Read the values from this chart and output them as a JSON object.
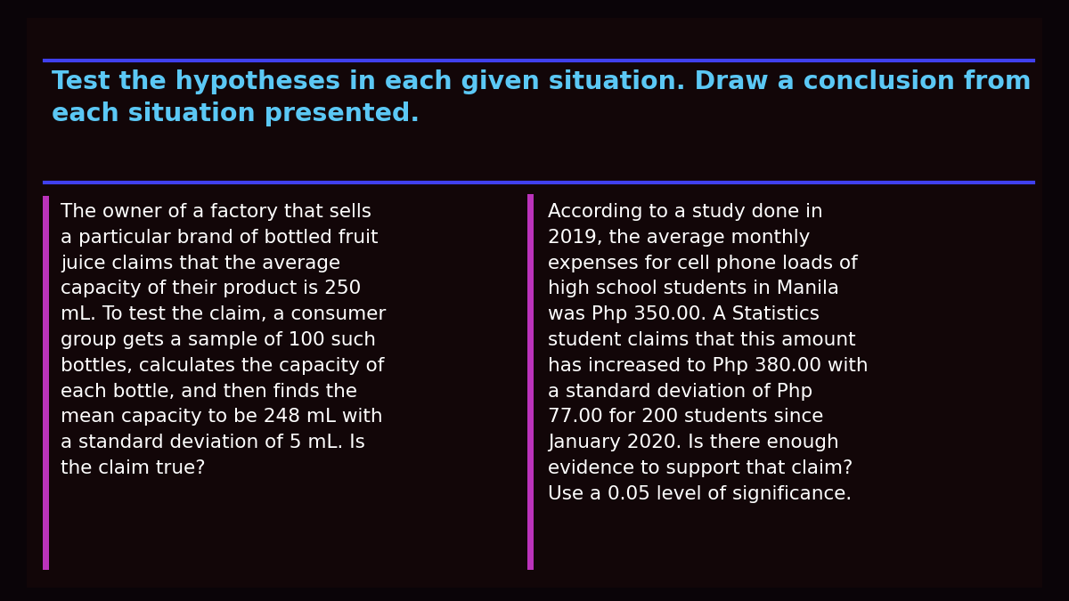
{
  "bg_color": "#0a0408",
  "panel_color": "#120608",
  "title_text": "Test the hypotheses in each given situation. Draw a conclusion from\neach situation presented.",
  "title_color": "#5bc8f5",
  "title_fontsize": 20.5,
  "blue_line_color": "#4040ee",
  "left_bar_color": "#bb33bb",
  "body_text_color": "#ffffff",
  "body_fontsize": 15.5,
  "left_text": "The owner of a factory that sells\na particular brand of bottled fruit\njuice claims that the average\ncapacity of their product is 250\nmL. To test the claim, a consumer\ngroup gets a sample of 100 such\nbottles, calculates the capacity of\neach bottle, and then finds the\nmean capacity to be 248 mL with\na standard deviation of 5 mL. Is\nthe claim true?",
  "right_text": "According to a study done in\n2019, the average monthly\nexpenses for cell phone loads of\nhigh school students in Manila\nwas Php 350.00. A Statistics\nstudent claims that this amount\nhas increased to Php 380.00 with\na standard deviation of Php\n77.00 for 200 students since\nJanuary 2020. Is there enough\nevidence to support that claim?\nUse a 0.05 level of significance."
}
